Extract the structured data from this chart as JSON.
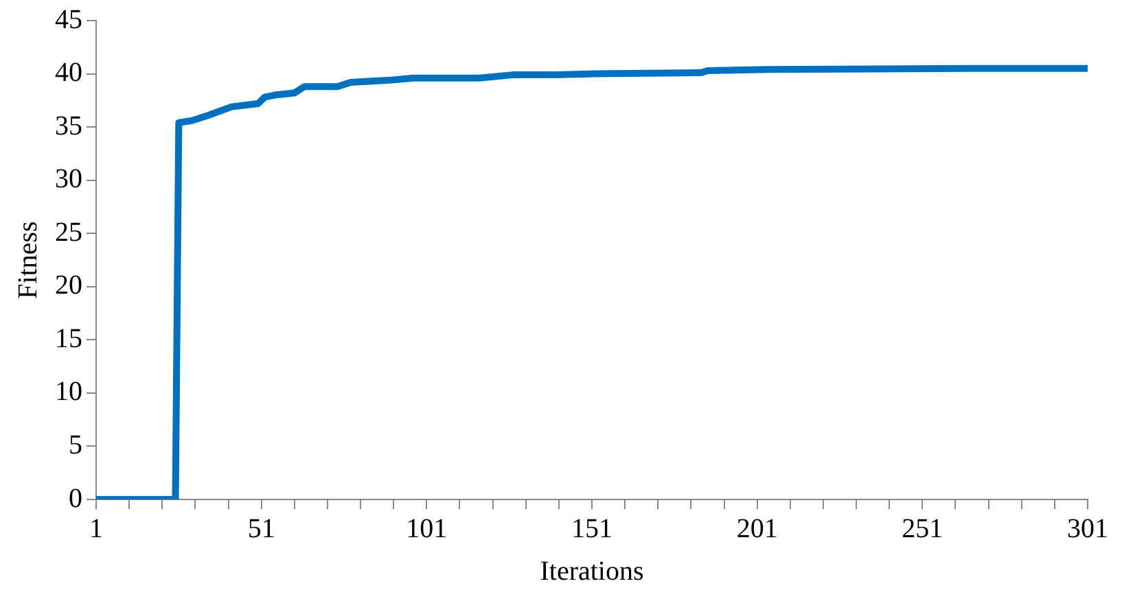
{
  "chart_data": {
    "type": "line",
    "xlabel": "Iterations",
    "ylabel": "Fitness",
    "x": [
      1,
      25,
      26,
      30,
      35,
      42,
      50,
      52,
      55,
      61,
      64,
      74,
      78,
      90,
      97,
      117,
      127,
      140,
      152,
      184,
      186,
      204,
      265,
      301
    ],
    "series": [
      {
        "color": "#0070c0",
        "values": [
          0,
          0,
          35.4,
          35.6,
          36.1,
          36.9,
          37.2,
          37.8,
          38,
          38.2,
          38.8,
          38.8,
          39.2,
          39.4,
          39.6,
          39.6,
          39.9,
          39.9,
          40,
          40.1,
          40.3,
          40.4,
          40.5,
          40.5
        ]
      }
    ],
    "xlim": [
      1,
      301
    ],
    "xticks": [
      1,
      {
        "value": 11,
        "label": null
      },
      {
        "value": 21,
        "label": null
      },
      {
        "value": 31,
        "label": null
      },
      {
        "value": 41,
        "label": null
      },
      51,
      {
        "value": 61,
        "label": null
      },
      {
        "value": 71,
        "label": null
      },
      {
        "value": 81,
        "label": null
      },
      {
        "value": 91,
        "label": null
      },
      101,
      {
        "value": 111,
        "label": null
      },
      {
        "value": 121,
        "label": null
      },
      {
        "value": 131,
        "label": null
      },
      {
        "value": 141,
        "label": null
      },
      151,
      {
        "value": 161,
        "label": null
      },
      {
        "value": 171,
        "label": null
      },
      {
        "value": 181,
        "label": null
      },
      {
        "value": 191,
        "label": null
      },
      201,
      {
        "value": 211,
        "label": null
      },
      {
        "value": 221,
        "label": null
      },
      {
        "value": 231,
        "label": null
      },
      {
        "value": 241,
        "label": null
      },
      251,
      {
        "value": 261,
        "label": null
      },
      {
        "value": 271,
        "label": null
      },
      {
        "value": 281,
        "label": null
      },
      {
        "value": 291,
        "label": null
      },
      301
    ],
    "ylim": [
      0,
      45
    ],
    "yticks": [
      0,
      5,
      10,
      15,
      20,
      25,
      30,
      35,
      40,
      45
    ],
    "grid": false,
    "legend": false,
    "marker": "none",
    "line_style": "solid"
  }
}
